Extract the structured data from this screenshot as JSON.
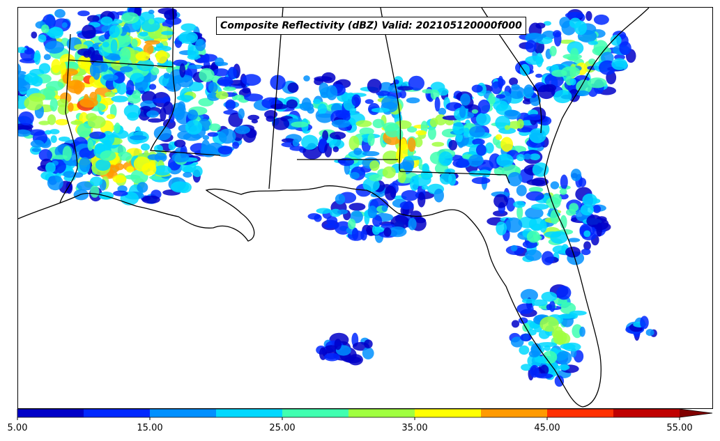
{
  "title": "Composite Reflectivity (dBZ) Valid: 202105120000f000",
  "colorbar": {
    "min": 5,
    "max": 55,
    "step": 5,
    "extend": "max",
    "colors": [
      "#0000c8",
      "#0028ff",
      "#0090ff",
      "#00d8ff",
      "#40ffb0",
      "#a0ff40",
      "#ffff00",
      "#ff9a00",
      "#ff3000",
      "#c00000",
      "#800000"
    ],
    "tick_labels": [
      "5.00",
      "15.00",
      "25.00",
      "35.00",
      "45.00",
      "55.00"
    ]
  },
  "colors": {
    "border": "#000000",
    "background": "#ffffff"
  }
}
